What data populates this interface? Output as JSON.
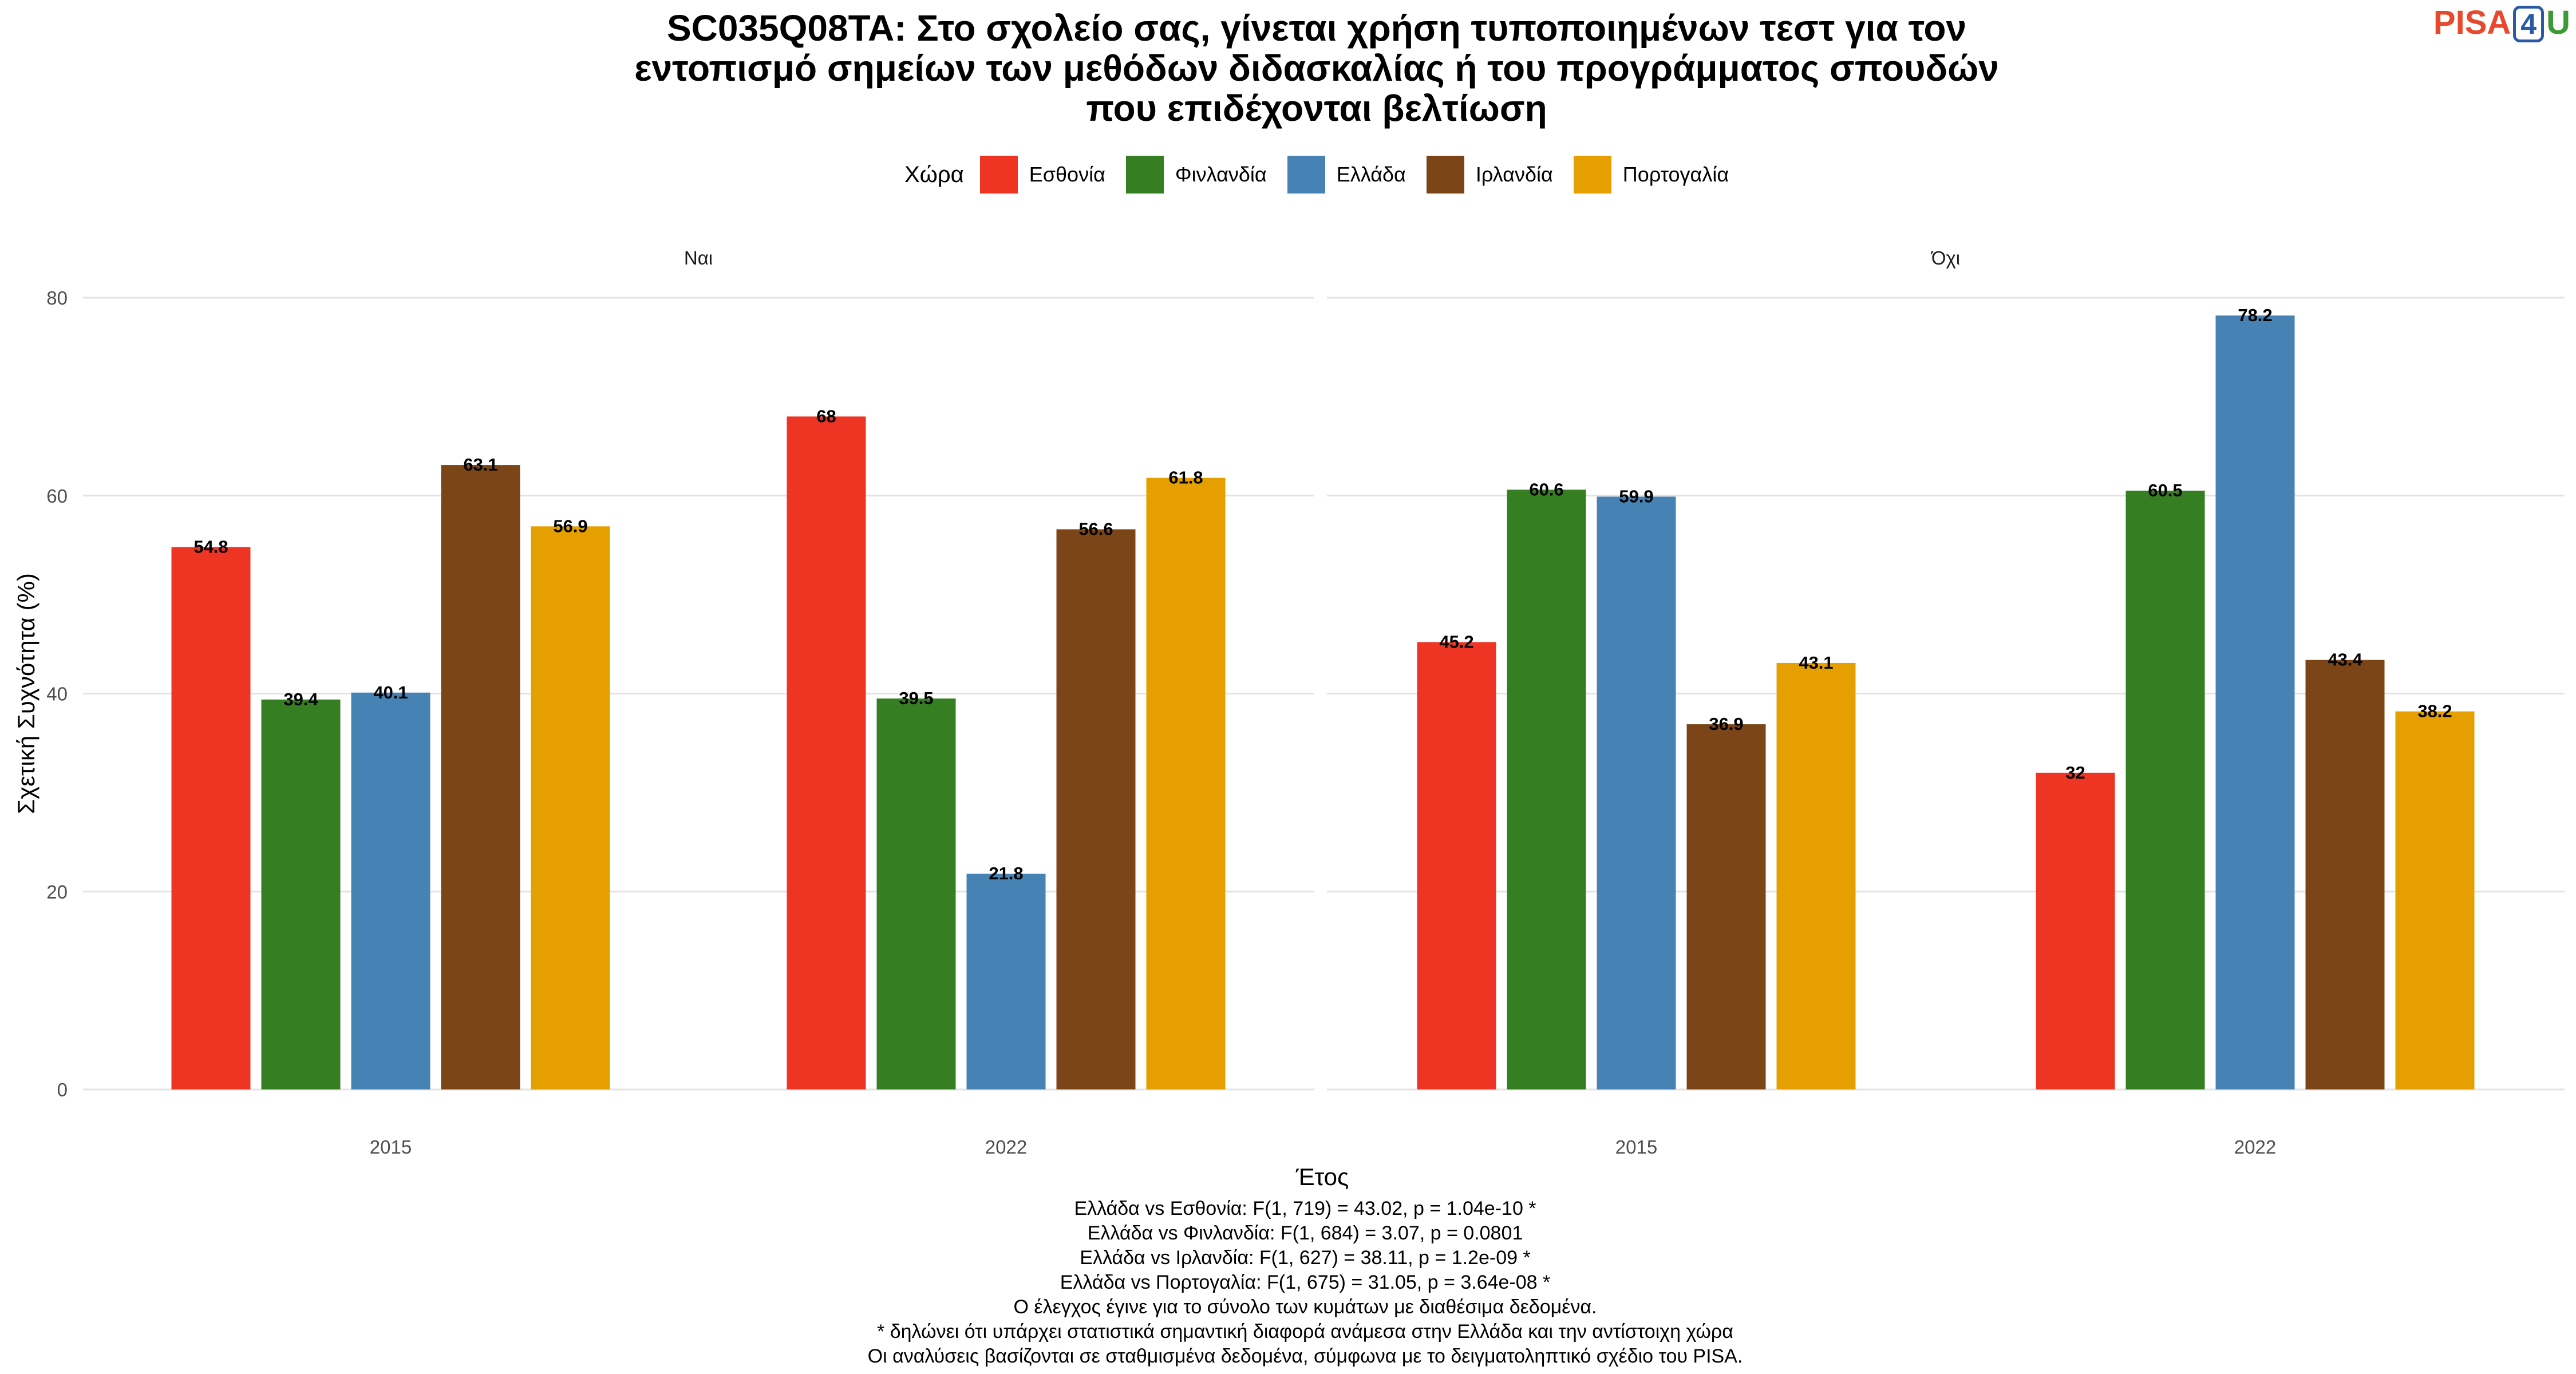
{
  "title_lines": [
    "SC035Q08TA: Στο σχολείο σας, γίνεται χρήση τυποποιημένων τεστ για τον",
    "εντοπισμό σημείων των μεθόδων διδασκαλίας ή του προγράμματος σπουδών",
    "που επιδέχονται βελτίωση"
  ],
  "logo": {
    "pisa": "PISA",
    "num": "4",
    "u": "U"
  },
  "legend": {
    "title": "Χώρα",
    "items": [
      {
        "label": "Εσθονία",
        "color": "#ee3524"
      },
      {
        "label": "Φινλανδία",
        "color": "#367e22"
      },
      {
        "label": "Ελλάδα",
        "color": "#4682b4"
      },
      {
        "label": "Ιρλανδία",
        "color": "#7b4517"
      },
      {
        "label": "Πορτογαλία",
        "color": "#e5a000"
      }
    ]
  },
  "chart_data": {
    "type": "bar",
    "xlabel": "Έτος",
    "ylabel": "Σχετική Συχνότητα (%)",
    "ylim": [
      0,
      80
    ],
    "yticks": [
      0,
      20,
      40,
      60,
      80
    ],
    "grid": true,
    "legend_position": "top",
    "categories": [
      "2015",
      "2022"
    ],
    "panels": [
      {
        "name": "Ναι",
        "series": [
          {
            "name": "Εσθονία",
            "values": [
              54.8,
              68
            ]
          },
          {
            "name": "Φινλανδία",
            "values": [
              39.4,
              39.5
            ]
          },
          {
            "name": "Ελλάδα",
            "values": [
              40.1,
              21.8
            ]
          },
          {
            "name": "Ιρλανδία",
            "values": [
              63.1,
              56.6
            ]
          },
          {
            "name": "Πορτογαλία",
            "values": [
              56.9,
              61.8
            ]
          }
        ]
      },
      {
        "name": "Όχι",
        "series": [
          {
            "name": "Εσθονία",
            "values": [
              45.2,
              32
            ]
          },
          {
            "name": "Φινλανδία",
            "values": [
              60.6,
              60.5
            ]
          },
          {
            "name": "Ελλάδα",
            "values": [
              59.9,
              78.2
            ]
          },
          {
            "name": "Ιρλανδία",
            "values": [
              36.9,
              43.4
            ]
          },
          {
            "name": "Πορτογαλία",
            "values": [
              43.1,
              38.2
            ]
          }
        ]
      }
    ]
  },
  "notes": [
    "Ελλάδα vs Εσθονία: F(1, 719) = 43.02, p = 1.04e-10 *",
    "Ελλάδα vs Φινλανδία: F(1, 684) = 3.07, p = 0.0801",
    "Ελλάδα vs Ιρλανδία: F(1, 627) = 38.11, p = 1.2e-09 *",
    "Ελλάδα vs Πορτογαλία: F(1, 675) = 31.05, p = 3.64e-08 *",
    "Ο έλεγχος έγινε για το σύνολο των κυμάτων με διαθέσιμα δεδομένα.",
    "* δηλώνει ότι υπάρχει στατιστικά σημαντική διαφορά ανάμεσα στην Ελλάδα και την αντίστοιχη χώρα",
    "Οι αναλύσεις βασίζονται σε σταθμισμένα δεδομένα, σύμφωνα με το δειγματοληπτικό σχέδιο του PISA."
  ]
}
